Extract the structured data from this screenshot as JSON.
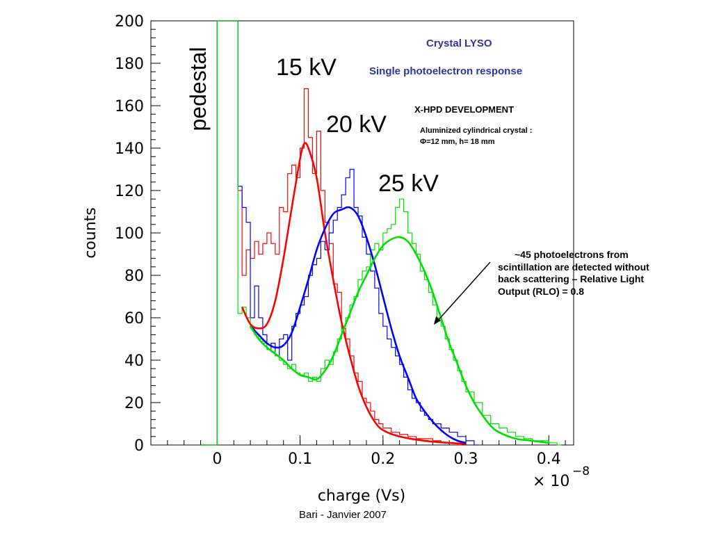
{
  "chart_data": {
    "type": "line",
    "xlabel": "charge (Vs)",
    "ylabel": "counts",
    "x_multiplier_label": "× 10",
    "x_multiplier_exponent": "−8",
    "xlim": [
      -0.08,
      0.43
    ],
    "ylim": [
      0,
      200
    ],
    "xticks": [
      0,
      0.1,
      0.2,
      0.3,
      0.4
    ],
    "xtick_labels": [
      "0",
      "0.1",
      "0.2",
      "0.3",
      "0.4"
    ],
    "yticks": [
      0,
      20,
      40,
      60,
      80,
      100,
      120,
      140,
      160,
      180,
      200
    ],
    "ytick_labels": [
      "0",
      "20",
      "40",
      "60",
      "80",
      "100",
      "120",
      "140",
      "160",
      "180",
      "200"
    ],
    "grid": false,
    "legend": "none",
    "series": [
      {
        "name": "15 kV",
        "color": "#ff0000",
        "fit_points": [
          [
            0.03,
            65
          ],
          [
            0.04,
            57
          ],
          [
            0.05,
            55
          ],
          [
            0.06,
            57
          ],
          [
            0.07,
            68
          ],
          [
            0.08,
            88
          ],
          [
            0.09,
            112
          ],
          [
            0.1,
            135
          ],
          [
            0.105,
            142
          ],
          [
            0.11,
            140
          ],
          [
            0.12,
            126
          ],
          [
            0.13,
            100
          ],
          [
            0.14,
            78
          ],
          [
            0.15,
            58
          ],
          [
            0.16,
            42
          ],
          [
            0.17,
            28
          ],
          [
            0.18,
            18
          ],
          [
            0.19,
            11
          ],
          [
            0.2,
            7
          ],
          [
            0.22,
            4
          ],
          [
            0.25,
            2
          ],
          [
            0.28,
            1
          ],
          [
            0.3,
            0.5
          ]
        ],
        "histogram": [
          [
            -0.02,
            0
          ],
          [
            -0.005,
            0
          ],
          [
            0.0,
            200
          ],
          [
            0.005,
            200
          ],
          [
            0.01,
            200
          ],
          [
            0.015,
            200
          ],
          [
            0.02,
            200
          ],
          [
            0.025,
            120
          ],
          [
            0.03,
            80
          ],
          [
            0.035,
            92
          ],
          [
            0.04,
            88
          ],
          [
            0.045,
            96
          ],
          [
            0.05,
            90
          ],
          [
            0.055,
            95
          ],
          [
            0.06,
            100
          ],
          [
            0.065,
            95
          ],
          [
            0.07,
            90
          ],
          [
            0.075,
            112
          ],
          [
            0.08,
            110
          ],
          [
            0.085,
            128
          ],
          [
            0.09,
            132
          ],
          [
            0.095,
            126
          ],
          [
            0.1,
            140
          ],
          [
            0.105,
            168
          ],
          [
            0.11,
            145
          ],
          [
            0.115,
            128
          ],
          [
            0.12,
            148
          ],
          [
            0.125,
            120
          ],
          [
            0.13,
            105
          ],
          [
            0.135,
            95
          ],
          [
            0.14,
            76
          ],
          [
            0.145,
            72
          ],
          [
            0.15,
            55
          ],
          [
            0.155,
            50
          ],
          [
            0.16,
            42
          ],
          [
            0.165,
            34
          ],
          [
            0.17,
            30
          ],
          [
            0.175,
            22
          ],
          [
            0.18,
            20
          ],
          [
            0.185,
            16
          ],
          [
            0.19,
            12
          ],
          [
            0.195,
            10
          ],
          [
            0.2,
            8
          ],
          [
            0.21,
            6
          ],
          [
            0.22,
            5
          ],
          [
            0.23,
            4
          ],
          [
            0.24,
            3
          ],
          [
            0.25,
            3
          ],
          [
            0.26,
            2
          ],
          [
            0.27,
            1
          ],
          [
            0.28,
            1
          ],
          [
            0.29,
            0
          ]
        ]
      },
      {
        "name": "20 kV",
        "color": "#0000ff",
        "fit_points": [
          [
            0.04,
            56
          ],
          [
            0.05,
            52
          ],
          [
            0.06,
            48
          ],
          [
            0.07,
            46
          ],
          [
            0.08,
            47
          ],
          [
            0.09,
            53
          ],
          [
            0.1,
            65
          ],
          [
            0.11,
            78
          ],
          [
            0.12,
            92
          ],
          [
            0.13,
            102
          ],
          [
            0.14,
            109
          ],
          [
            0.15,
            111
          ],
          [
            0.16,
            112
          ],
          [
            0.17,
            108
          ],
          [
            0.18,
            98
          ],
          [
            0.19,
            85
          ],
          [
            0.2,
            70
          ],
          [
            0.21,
            55
          ],
          [
            0.22,
            42
          ],
          [
            0.23,
            32
          ],
          [
            0.24,
            22
          ],
          [
            0.25,
            16
          ],
          [
            0.26,
            11
          ],
          [
            0.27,
            7
          ],
          [
            0.28,
            4
          ],
          [
            0.29,
            2
          ],
          [
            0.3,
            1
          ]
        ],
        "histogram": [
          [
            -0.02,
            0
          ],
          [
            -0.005,
            0
          ],
          [
            0.0,
            200
          ],
          [
            0.005,
            200
          ],
          [
            0.01,
            200
          ],
          [
            0.015,
            200
          ],
          [
            0.02,
            200
          ],
          [
            0.025,
            122
          ],
          [
            0.03,
            112
          ],
          [
            0.035,
            105
          ],
          [
            0.04,
            60
          ],
          [
            0.045,
            75
          ],
          [
            0.05,
            60
          ],
          [
            0.055,
            52
          ],
          [
            0.06,
            45
          ],
          [
            0.065,
            48
          ],
          [
            0.07,
            42
          ],
          [
            0.075,
            50
          ],
          [
            0.08,
            52
          ],
          [
            0.085,
            40
          ],
          [
            0.09,
            56
          ],
          [
            0.095,
            62
          ],
          [
            0.1,
            66
          ],
          [
            0.105,
            70
          ],
          [
            0.11,
            80
          ],
          [
            0.115,
            85
          ],
          [
            0.12,
            88
          ],
          [
            0.125,
            96
          ],
          [
            0.13,
            92
          ],
          [
            0.135,
            100
          ],
          [
            0.14,
            106
          ],
          [
            0.145,
            112
          ],
          [
            0.15,
            118
          ],
          [
            0.155,
            126
          ],
          [
            0.16,
            130
          ],
          [
            0.165,
            112
          ],
          [
            0.17,
            108
          ],
          [
            0.175,
            98
          ],
          [
            0.18,
            90
          ],
          [
            0.185,
            82
          ],
          [
            0.19,
            74
          ],
          [
            0.195,
            62
          ],
          [
            0.2,
            56
          ],
          [
            0.205,
            50
          ],
          [
            0.21,
            46
          ],
          [
            0.215,
            42
          ],
          [
            0.22,
            38
          ],
          [
            0.225,
            32
          ],
          [
            0.23,
            26
          ],
          [
            0.235,
            22
          ],
          [
            0.24,
            20
          ],
          [
            0.245,
            16
          ],
          [
            0.25,
            14
          ],
          [
            0.255,
            12
          ],
          [
            0.26,
            10
          ],
          [
            0.27,
            8
          ],
          [
            0.28,
            6
          ],
          [
            0.29,
            4
          ],
          [
            0.3,
            2
          ],
          [
            0.31,
            0
          ]
        ]
      },
      {
        "name": "25  kV",
        "color": "#00e000",
        "fit_points": [
          [
            0.04,
            56
          ],
          [
            0.05,
            50
          ],
          [
            0.06,
            46
          ],
          [
            0.07,
            43
          ],
          [
            0.08,
            40
          ],
          [
            0.09,
            36
          ],
          [
            0.1,
            33
          ],
          [
            0.11,
            32
          ],
          [
            0.12,
            31
          ],
          [
            0.13,
            35
          ],
          [
            0.14,
            42
          ],
          [
            0.15,
            52
          ],
          [
            0.16,
            62
          ],
          [
            0.17,
            72
          ],
          [
            0.18,
            80
          ],
          [
            0.19,
            88
          ],
          [
            0.2,
            94
          ],
          [
            0.21,
            97
          ],
          [
            0.22,
            98
          ],
          [
            0.23,
            96
          ],
          [
            0.24,
            90
          ],
          [
            0.25,
            82
          ],
          [
            0.26,
            72
          ],
          [
            0.27,
            60
          ],
          [
            0.28,
            48
          ],
          [
            0.29,
            38
          ],
          [
            0.3,
            28
          ],
          [
            0.31,
            20
          ],
          [
            0.32,
            14
          ],
          [
            0.33,
            9
          ],
          [
            0.34,
            6
          ],
          [
            0.36,
            3
          ],
          [
            0.38,
            2
          ],
          [
            0.4,
            1
          ]
        ],
        "histogram": [
          [
            -0.02,
            0
          ],
          [
            -0.005,
            0
          ],
          [
            0.0,
            200
          ],
          [
            0.005,
            200
          ],
          [
            0.01,
            200
          ],
          [
            0.015,
            200
          ],
          [
            0.02,
            200
          ],
          [
            0.025,
            62
          ],
          [
            0.03,
            65
          ],
          [
            0.035,
            60
          ],
          [
            0.04,
            55
          ],
          [
            0.045,
            52
          ],
          [
            0.05,
            50
          ],
          [
            0.055,
            48
          ],
          [
            0.06,
            45
          ],
          [
            0.065,
            44
          ],
          [
            0.07,
            42
          ],
          [
            0.075,
            40
          ],
          [
            0.08,
            38
          ],
          [
            0.085,
            36
          ],
          [
            0.09,
            38
          ],
          [
            0.095,
            34
          ],
          [
            0.1,
            33
          ],
          [
            0.105,
            34
          ],
          [
            0.11,
            30
          ],
          [
            0.115,
            32
          ],
          [
            0.12,
            30
          ],
          [
            0.125,
            36
          ],
          [
            0.13,
            40
          ],
          [
            0.135,
            38
          ],
          [
            0.14,
            44
          ],
          [
            0.145,
            50
          ],
          [
            0.15,
            56
          ],
          [
            0.155,
            60
          ],
          [
            0.16,
            66
          ],
          [
            0.165,
            70
          ],
          [
            0.17,
            78
          ],
          [
            0.175,
            82
          ],
          [
            0.18,
            84
          ],
          [
            0.185,
            92
          ],
          [
            0.19,
            95
          ],
          [
            0.195,
            92
          ],
          [
            0.2,
            100
          ],
          [
            0.205,
            102
          ],
          [
            0.21,
            104
          ],
          [
            0.215,
            112
          ],
          [
            0.22,
            116
          ],
          [
            0.225,
            110
          ],
          [
            0.23,
            100
          ],
          [
            0.235,
            95
          ],
          [
            0.24,
            90
          ],
          [
            0.245,
            82
          ],
          [
            0.25,
            78
          ],
          [
            0.255,
            72
          ],
          [
            0.26,
            66
          ],
          [
            0.265,
            60
          ],
          [
            0.27,
            56
          ],
          [
            0.275,
            50
          ],
          [
            0.28,
            45
          ],
          [
            0.285,
            40
          ],
          [
            0.29,
            35
          ],
          [
            0.295,
            30
          ],
          [
            0.3,
            25
          ],
          [
            0.31,
            20
          ],
          [
            0.32,
            14
          ],
          [
            0.33,
            10
          ],
          [
            0.34,
            8
          ],
          [
            0.35,
            6
          ],
          [
            0.36,
            4
          ],
          [
            0.37,
            3
          ],
          [
            0.38,
            2
          ],
          [
            0.39,
            2
          ],
          [
            0.4,
            1
          ],
          [
            0.41,
            0
          ]
        ]
      }
    ],
    "annotations": [
      {
        "text": "pedestal",
        "x": 0.01,
        "y": 170
      },
      {
        "text": "15 kV",
        "x": 0.1,
        "y": 180
      },
      {
        "text": "20 kV",
        "x": 0.15,
        "y": 152
      },
      {
        "text": "25  kV",
        "x": 0.225,
        "y": 123
      }
    ]
  },
  "texts": {
    "crystal_title": "Crystal LYSO",
    "response_title": "Single photoelectron response",
    "development": "X-HPD DEVELOPMENT",
    "crystal_desc_line1": "Aluminized cylindrical crystal :",
    "crystal_desc_line2": "Φ=12 mm, h= 18 mm",
    "note": "~45 photoelectrons from\nscintillation are detected without\nback scattering – Relative Light\nOutput (RLO) = 0.8",
    "footer": "Bari - Janvier 2007"
  },
  "colors": {
    "title_blue": "#2b35a0"
  }
}
